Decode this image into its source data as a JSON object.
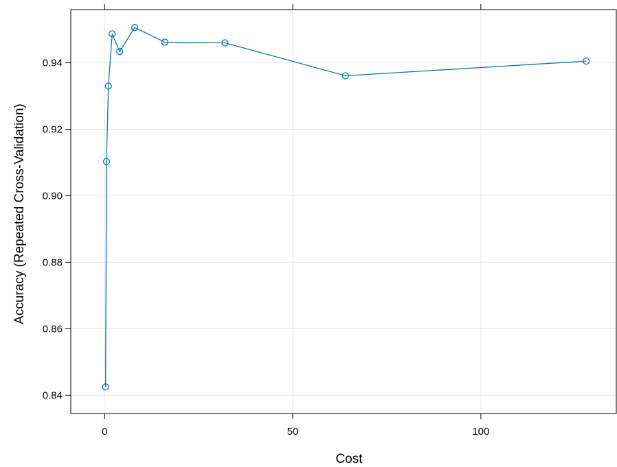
{
  "chart_data": {
    "type": "line",
    "xlabel": "Cost",
    "ylabel": "Accuracy (Repeated Cross-Validation)",
    "x": [
      0.25,
      0.5,
      1,
      2,
      4,
      8,
      16,
      32,
      64,
      128
    ],
    "series": [
      {
        "values": [
          0.8425,
          0.9103,
          0.933,
          0.9487,
          0.9434,
          0.9506,
          0.9462,
          0.946,
          0.9361,
          0.9405
        ]
      }
    ],
    "xlim": [
      -9,
      136
    ],
    "ylim": [
      0.8345,
      0.956
    ],
    "xticks": [
      0,
      50,
      100
    ],
    "xtick_labels": [
      "0",
      "50",
      "100"
    ],
    "yticks": [
      0.84,
      0.86,
      0.88,
      0.9,
      0.92,
      0.94
    ],
    "ytick_labels": [
      "0.84",
      "0.86",
      "0.88",
      "0.90",
      "0.92",
      "0.94"
    ],
    "grid": true,
    "colors": {
      "line": "#0b73b0",
      "grid": "#e6e6e6",
      "axis": "#000000"
    }
  }
}
